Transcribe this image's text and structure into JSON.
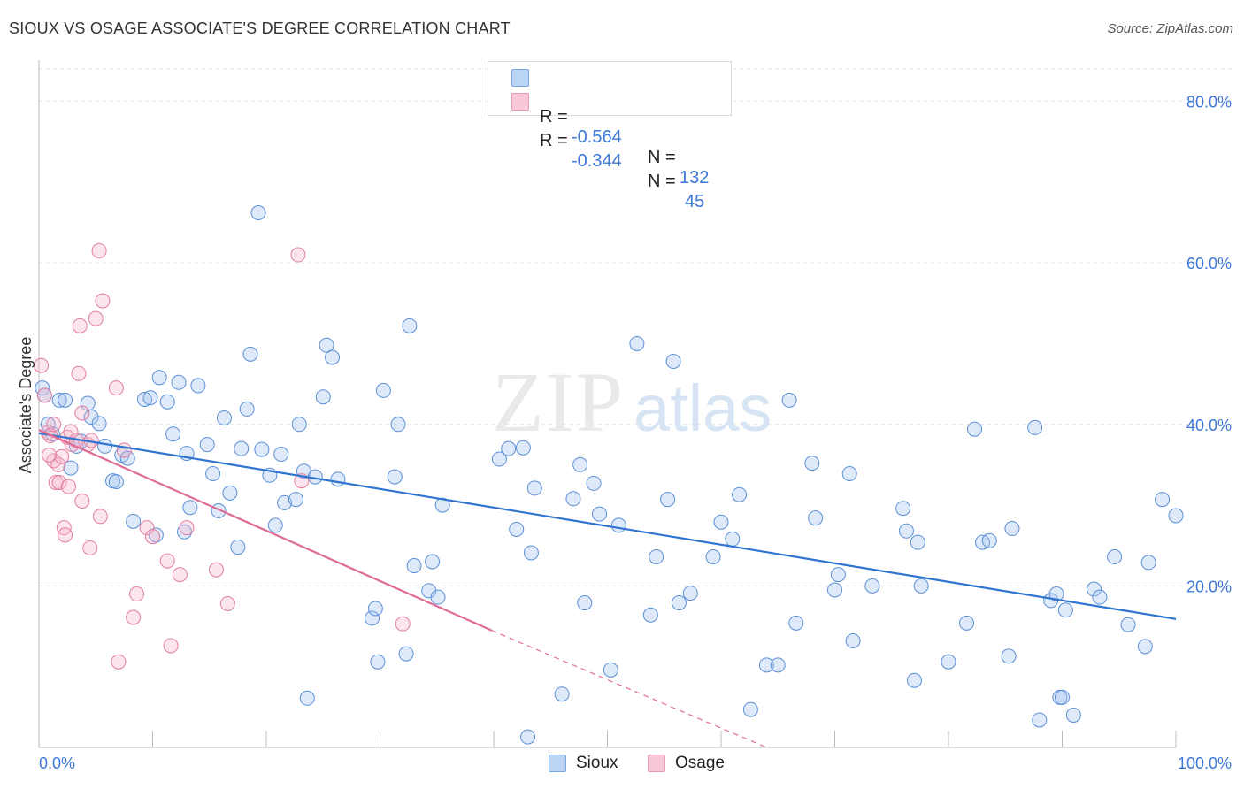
{
  "header": {
    "title": "SIOUX VS OSAGE ASSOCIATE'S DEGREE CORRELATION CHART",
    "source": "Source: ZipAtlas.com"
  },
  "watermark": {
    "zip": "ZIP",
    "atlas": "atlas"
  },
  "legend": {
    "rows": [
      {
        "r_label": "R =",
        "r_value": "-0.564",
        "n_label": "N =",
        "n_value": "132",
        "color": "#a8c8f0"
      },
      {
        "r_label": "R =",
        "r_value": "-0.344",
        "n_label": "N =",
        "n_value": "45",
        "color": "#f5b8cc"
      }
    ]
  },
  "bottom_legend": {
    "sioux": "Sioux",
    "osage": "Osage"
  },
  "colors": {
    "sioux_fill": "rgba(160,196,240,0.35)",
    "sioux_stroke": "#5b8fd6",
    "sioux_line": "#2f74d0",
    "osage_fill": "rgba(245,180,200,0.35)",
    "osage_stroke": "#e27ea0",
    "osage_line": "#e06c96",
    "value_text": "#3c78d8"
  },
  "chart_data": {
    "type": "scatter",
    "title": "SIOUX VS OSAGE ASSOCIATE'S DEGREE CORRELATION CHART",
    "ylabel": "Associate's Degree",
    "xlim": [
      0,
      100
    ],
    "ylim": [
      0,
      84
    ],
    "x_tick_labels": [
      "0.0%",
      "100.0%"
    ],
    "y_ticks": [
      20,
      40,
      60,
      80
    ],
    "y_tick_labels": [
      "20.0%",
      "40.0%",
      "60.0%",
      "80.0%"
    ],
    "grid": true,
    "legend_position": "top-center",
    "series": [
      {
        "name": "Sioux",
        "R": -0.564,
        "N": 132,
        "trend": {
          "x0": 0,
          "y0": 38.9,
          "x1": 100,
          "y1": 15.9
        },
        "points": [
          [
            0.3,
            44.5
          ],
          [
            0.5,
            43.6
          ],
          [
            0.8,
            40.0
          ],
          [
            1.2,
            38.8
          ],
          [
            1.8,
            43.0
          ],
          [
            2.3,
            43.0
          ],
          [
            2.8,
            34.6
          ],
          [
            3.3,
            37.3
          ],
          [
            3.7,
            37.9
          ],
          [
            4.3,
            42.6
          ],
          [
            4.6,
            40.9
          ],
          [
            5.3,
            40.1
          ],
          [
            5.8,
            37.3
          ],
          [
            6.5,
            33.0
          ],
          [
            6.8,
            32.9
          ],
          [
            7.3,
            36.2
          ],
          [
            7.8,
            35.8
          ],
          [
            8.3,
            28.0
          ],
          [
            9.3,
            43.1
          ],
          [
            9.8,
            43.3
          ],
          [
            10.3,
            26.3
          ],
          [
            10.6,
            45.8
          ],
          [
            11.3,
            42.8
          ],
          [
            11.8,
            38.8
          ],
          [
            12.3,
            45.2
          ],
          [
            12.8,
            26.7
          ],
          [
            13.0,
            36.4
          ],
          [
            13.3,
            29.7
          ],
          [
            14.0,
            44.8
          ],
          [
            14.8,
            37.5
          ],
          [
            15.3,
            33.9
          ],
          [
            15.8,
            29.3
          ],
          [
            16.3,
            40.8
          ],
          [
            16.8,
            31.5
          ],
          [
            17.5,
            24.8
          ],
          [
            17.8,
            37.0
          ],
          [
            18.3,
            41.9
          ],
          [
            18.6,
            48.7
          ],
          [
            19.3,
            66.2
          ],
          [
            19.6,
            36.9
          ],
          [
            20.3,
            33.7
          ],
          [
            20.8,
            27.5
          ],
          [
            21.3,
            36.3
          ],
          [
            21.6,
            30.3
          ],
          [
            22.6,
            30.7
          ],
          [
            22.9,
            40.0
          ],
          [
            23.3,
            34.2
          ],
          [
            23.6,
            6.1
          ],
          [
            24.3,
            33.5
          ],
          [
            25.0,
            43.4
          ],
          [
            25.3,
            49.8
          ],
          [
            25.8,
            48.3
          ],
          [
            26.3,
            33.2
          ],
          [
            29.3,
            16.0
          ],
          [
            29.6,
            17.2
          ],
          [
            29.8,
            10.6
          ],
          [
            30.3,
            44.2
          ],
          [
            31.3,
            33.5
          ],
          [
            31.6,
            40.0
          ],
          [
            32.3,
            11.6
          ],
          [
            32.6,
            52.2
          ],
          [
            33.0,
            22.5
          ],
          [
            34.3,
            19.4
          ],
          [
            34.6,
            23.0
          ],
          [
            35.1,
            18.6
          ],
          [
            35.5,
            30.0
          ],
          [
            40.5,
            35.7
          ],
          [
            41.3,
            37.0
          ],
          [
            42.0,
            27.0
          ],
          [
            42.6,
            37.1
          ],
          [
            43.0,
            1.3
          ],
          [
            43.3,
            24.1
          ],
          [
            43.6,
            32.1
          ],
          [
            46.0,
            6.6
          ],
          [
            47.0,
            30.8
          ],
          [
            47.6,
            35.0
          ],
          [
            48.0,
            17.9
          ],
          [
            48.8,
            32.7
          ],
          [
            49.3,
            28.9
          ],
          [
            50.3,
            9.6
          ],
          [
            51.0,
            27.5
          ],
          [
            52.6,
            50.0
          ],
          [
            53.8,
            16.4
          ],
          [
            54.3,
            23.6
          ],
          [
            55.3,
            30.7
          ],
          [
            55.8,
            47.8
          ],
          [
            56.3,
            17.9
          ],
          [
            57.3,
            19.1
          ],
          [
            59.3,
            23.6
          ],
          [
            60.0,
            27.9
          ],
          [
            61.0,
            25.8
          ],
          [
            61.6,
            31.3
          ],
          [
            62.6,
            4.7
          ],
          [
            64.0,
            10.2
          ],
          [
            65.0,
            10.2
          ],
          [
            66.0,
            43.0
          ],
          [
            66.6,
            15.4
          ],
          [
            68.0,
            35.2
          ],
          [
            68.3,
            28.4
          ],
          [
            70.0,
            19.5
          ],
          [
            70.3,
            21.4
          ],
          [
            71.3,
            33.9
          ],
          [
            71.6,
            13.2
          ],
          [
            73.3,
            20.0
          ],
          [
            76.0,
            29.6
          ],
          [
            76.3,
            26.8
          ],
          [
            77.0,
            8.3
          ],
          [
            77.3,
            25.4
          ],
          [
            77.6,
            20.0
          ],
          [
            80.0,
            10.6
          ],
          [
            81.6,
            15.4
          ],
          [
            82.3,
            39.4
          ],
          [
            83.0,
            25.4
          ],
          [
            83.6,
            25.6
          ],
          [
            85.3,
            11.3
          ],
          [
            85.6,
            27.1
          ],
          [
            87.6,
            39.6
          ],
          [
            88.0,
            3.4
          ],
          [
            89.0,
            18.2
          ],
          [
            89.5,
            19.0
          ],
          [
            89.8,
            6.2
          ],
          [
            90.0,
            6.2
          ],
          [
            90.3,
            17.0
          ],
          [
            91.0,
            4.0
          ],
          [
            92.8,
            19.6
          ],
          [
            93.3,
            18.6
          ],
          [
            94.6,
            23.6
          ],
          [
            95.8,
            15.2
          ],
          [
            97.3,
            12.5
          ],
          [
            97.6,
            22.9
          ],
          [
            98.8,
            30.7
          ],
          [
            100.0,
            28.7
          ]
        ]
      },
      {
        "name": "Osage",
        "R": -0.344,
        "N": 45,
        "trend": {
          "x0": 0,
          "y0": 39.3,
          "x1": 39.8,
          "y1": 14.5,
          "dash_to_x": 64,
          "dash_to_y": 0
        },
        "points": [
          [
            0.2,
            47.3
          ],
          [
            0.5,
            43.6
          ],
          [
            0.8,
            39.0
          ],
          [
            1.0,
            38.6
          ],
          [
            1.3,
            35.5
          ],
          [
            1.5,
            32.8
          ],
          [
            1.7,
            35.0
          ],
          [
            1.8,
            32.8
          ],
          [
            2.0,
            36.0
          ],
          [
            2.2,
            27.2
          ],
          [
            2.3,
            26.3
          ],
          [
            2.5,
            38.4
          ],
          [
            2.6,
            32.3
          ],
          [
            2.8,
            39.1
          ],
          [
            2.9,
            37.5
          ],
          [
            3.3,
            38.0
          ],
          [
            3.5,
            46.3
          ],
          [
            3.6,
            52.2
          ],
          [
            3.8,
            30.5
          ],
          [
            3.8,
            41.4
          ],
          [
            4.3,
            37.5
          ],
          [
            4.5,
            24.7
          ],
          [
            4.6,
            38.0
          ],
          [
            5.0,
            53.1
          ],
          [
            5.3,
            61.5
          ],
          [
            5.4,
            28.6
          ],
          [
            5.6,
            55.3
          ],
          [
            6.8,
            44.5
          ],
          [
            7.0,
            10.6
          ],
          [
            7.5,
            36.8
          ],
          [
            8.3,
            16.1
          ],
          [
            8.6,
            19.0
          ],
          [
            9.5,
            27.2
          ],
          [
            10.0,
            26.1
          ],
          [
            11.3,
            23.1
          ],
          [
            11.6,
            12.6
          ],
          [
            12.4,
            21.4
          ],
          [
            13.0,
            27.2
          ],
          [
            15.6,
            22.0
          ],
          [
            16.6,
            17.8
          ],
          [
            22.8,
            61.0
          ],
          [
            23.1,
            33.0
          ],
          [
            32.0,
            15.3
          ],
          [
            1.3,
            40.0
          ],
          [
            0.9,
            36.2
          ]
        ]
      }
    ]
  }
}
